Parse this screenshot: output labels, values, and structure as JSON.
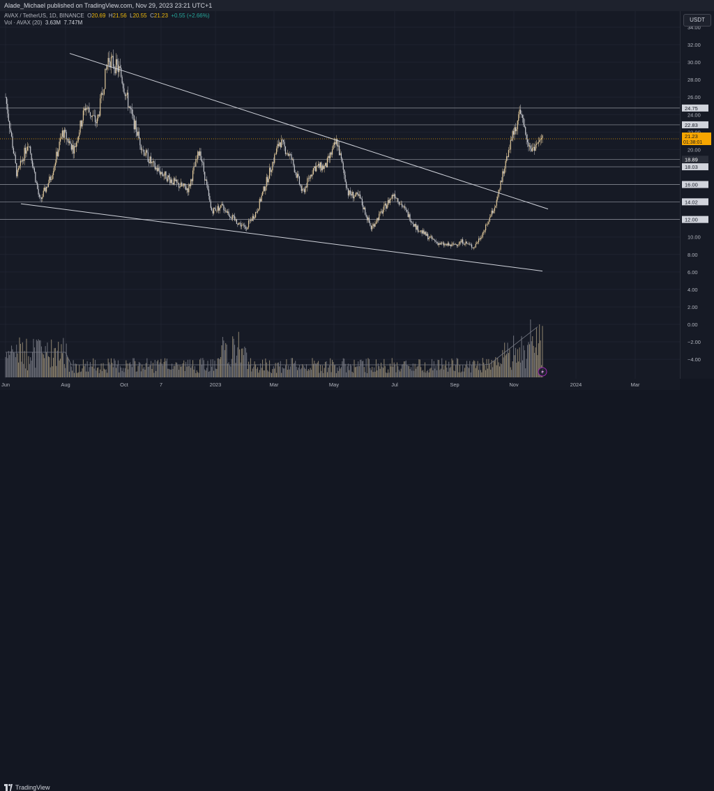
{
  "header": {
    "published": "Alade_Michael published on TradingView.com, Nov 29, 2023 23:21 UTC+1"
  },
  "legend": {
    "symbol": "AVAX / TetherUS, 1D, BINANCE",
    "o_label": "O",
    "o_value": "20.69",
    "h_label": "H",
    "h_value": "21.56",
    "l_label": "L",
    "l_value": "20.55",
    "c_label": "C",
    "c_value": "21.23",
    "change": "+0.55 (+2.66%)",
    "vol_label": "Vol · AVAX (20)",
    "vol_value": "3.63M",
    "vol_ma": "7.747M"
  },
  "currency_button": "USDT",
  "price_axis": {
    "ticks": [
      "34.00",
      "32.00",
      "30.00",
      "28.00",
      "26.00",
      "24.00",
      "22.00",
      "20.00",
      "18.00",
      "16.00",
      "14.00",
      "12.00",
      "10.00",
      "8.00",
      "6.00",
      "4.00",
      "2.00",
      "0.00",
      "−2.00",
      "−4.00"
    ],
    "labels": [
      {
        "text": "24.75",
        "value": 24.75
      },
      {
        "text": "22.83",
        "value": 22.83
      },
      {
        "text": "18.89",
        "value": 18.89
      },
      {
        "text": "18.03",
        "value": 18.03
      },
      {
        "text": "16.00",
        "value": 16.0
      },
      {
        "text": "14.02",
        "value": 14.02
      },
      {
        "text": "12.00",
        "value": 12.0
      }
    ],
    "current_price": "21.23",
    "countdown": "01:38:01"
  },
  "time_axis": {
    "labels": [
      "Jun",
      "Aug",
      "Oct",
      "7",
      "2023",
      "Mar",
      "May",
      "Jul",
      "Sep",
      "Nov",
      "2024",
      "Mar"
    ]
  },
  "footer": {
    "brand": "TradingView"
  },
  "chart_data": {
    "type": "line",
    "price_close_approx": [
      {
        "t": "Jun",
        "y": 26
      },
      {
        "t": "Jun",
        "y": 17
      },
      {
        "t": "Jun",
        "y": 21
      },
      {
        "t": "Jun",
        "y": 14
      },
      {
        "t": "Jul",
        "y": 17
      },
      {
        "t": "Jul",
        "y": 22
      },
      {
        "t": "Jul",
        "y": 20
      },
      {
        "t": "Jul",
        "y": 25
      },
      {
        "t": "Aug",
        "y": 23
      },
      {
        "t": "Aug",
        "y": 30.5
      },
      {
        "t": "Aug",
        "y": 29
      },
      {
        "t": "Sep",
        "y": 24
      },
      {
        "t": "Sep",
        "y": 20
      },
      {
        "t": "Oct",
        "y": 18
      },
      {
        "t": "Oct",
        "y": 17
      },
      {
        "t": "Oct",
        "y": 16
      },
      {
        "t": "Nov",
        "y": 15.5
      },
      {
        "t": "Nov",
        "y": 20
      },
      {
        "t": "Nov",
        "y": 13
      },
      {
        "t": "Dec",
        "y": 13.5
      },
      {
        "t": "Dec",
        "y": 12
      },
      {
        "t": "Dec",
        "y": 11
      },
      {
        "t": "2023",
        "y": 13
      },
      {
        "t": "Jan",
        "y": 17
      },
      {
        "t": "Feb",
        "y": 21
      },
      {
        "t": "Feb",
        "y": 19
      },
      {
        "t": "Mar",
        "y": 15
      },
      {
        "t": "Mar",
        "y": 18
      },
      {
        "t": "Apr",
        "y": 18
      },
      {
        "t": "Apr",
        "y": 21
      },
      {
        "t": "May",
        "y": 15
      },
      {
        "t": "May",
        "y": 14.5
      },
      {
        "t": "Jun",
        "y": 11
      },
      {
        "t": "Jun",
        "y": 13
      },
      {
        "t": "Jul",
        "y": 15
      },
      {
        "t": "Jul",
        "y": 13
      },
      {
        "t": "Aug",
        "y": 11
      },
      {
        "t": "Aug",
        "y": 10
      },
      {
        "t": "Sep",
        "y": 9.2
      },
      {
        "t": "Sep",
        "y": 9
      },
      {
        "t": "Oct",
        "y": 9.5
      },
      {
        "t": "Oct",
        "y": 8.8
      },
      {
        "t": "Oct",
        "y": 11
      },
      {
        "t": "Nov",
        "y": 14
      },
      {
        "t": "Nov",
        "y": 20
      },
      {
        "t": "Nov",
        "y": 24
      },
      {
        "t": "Nov",
        "y": 20
      },
      {
        "t": "Nov",
        "y": 21.23
      }
    ],
    "horizontal_levels": [
      24.75,
      22.83,
      18.89,
      18.03,
      16.0,
      14.02,
      12.0
    ],
    "trendlines": [
      {
        "from": {
          "t": "Aug 2022",
          "y": 31
        },
        "to": {
          "t": "Dec 2023",
          "y": 13.2
        }
      },
      {
        "from": {
          "t": "Jun 2022",
          "y": 13.8
        },
        "to": {
          "t": "Dec 2023",
          "y": 6.1
        }
      }
    ],
    "ylim": [
      -4.5,
      35.5
    ]
  }
}
